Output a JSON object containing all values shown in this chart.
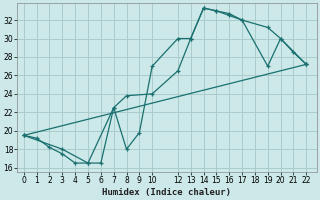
{
  "xlabel": "Humidex (Indice chaleur)",
  "bg_color": "#cce8e8",
  "grid_color": "#aacccc",
  "line_color": "#1a7070",
  "xlim": [
    -0.5,
    22.8
  ],
  "ylim": [
    15.5,
    33.8
  ],
  "xticks": [
    0,
    1,
    2,
    3,
    4,
    5,
    6,
    7,
    8,
    9,
    10,
    12,
    13,
    14,
    15,
    16,
    17,
    18,
    19,
    20,
    21,
    22
  ],
  "yticks": [
    16,
    18,
    20,
    22,
    24,
    26,
    28,
    30,
    32
  ],
  "line1_x": [
    0,
    1,
    2,
    3,
    4,
    5,
    6,
    7,
    8,
    9,
    10,
    12,
    13,
    14,
    15,
    16,
    17,
    19,
    20,
    21,
    22
  ],
  "line1_y": [
    19.5,
    19.2,
    18.2,
    17.5,
    16.5,
    16.5,
    16.5,
    22.5,
    18.0,
    19.8,
    27.0,
    30.0,
    30.0,
    33.3,
    33.0,
    32.7,
    32.0,
    31.2,
    30.0,
    28.5,
    27.2
  ],
  "line2_x": [
    0,
    3,
    5,
    7,
    8,
    10,
    12,
    13,
    14,
    15,
    16,
    17,
    19,
    20,
    22
  ],
  "line2_y": [
    19.5,
    18.0,
    16.5,
    22.5,
    23.8,
    24.0,
    26.5,
    30.0,
    33.3,
    33.0,
    32.5,
    32.0,
    27.0,
    30.0,
    27.2
  ],
  "line3_x": [
    0,
    22
  ],
  "line3_y": [
    19.5,
    27.2
  ],
  "marker_size": 3.5,
  "lw": 0.9
}
